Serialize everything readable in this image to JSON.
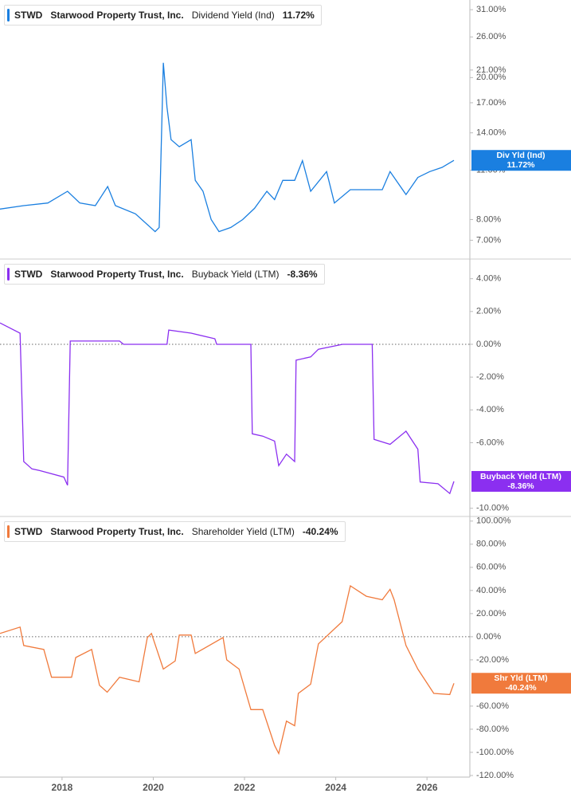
{
  "chart_data": [
    {
      "type": "line",
      "ticker": "STWD",
      "company": "Starwood Property Trust, Inc.",
      "last_label": "11.72%",
      "badge_name": "Div Yld (Ind)",
      "log_scale": true,
      "zero_line": false,
      "x": [
        2016.64,
        2017.16,
        2017.69,
        2018.12,
        2018.39,
        2018.73,
        2019.0,
        2019.17,
        2019.61,
        2020.04,
        2020.13,
        2020.22,
        2020.3,
        2020.39,
        2020.57,
        2020.83,
        2020.92,
        2021.09,
        2021.27,
        2021.44,
        2021.7,
        2021.96,
        2022.22,
        2022.49,
        2022.66,
        2022.84,
        2023.1,
        2023.27,
        2023.45,
        2023.8,
        2023.97,
        2024.32,
        2024.67,
        2025.02,
        2025.19,
        2025.54,
        2025.8,
        2026.06,
        2026.33,
        2026.59
      ],
      "series": [
        {
          "name": "Dividend Yield (Ind)",
          "color": "#1a7fe0",
          "values": [
            8.56,
            8.75,
            8.9,
            9.6,
            8.9,
            8.75,
            9.9,
            8.75,
            8.3,
            7.4,
            7.6,
            22,
            16.5,
            13.4,
            12.8,
            13.4,
            10.3,
            9.6,
            8.0,
            7.4,
            7.6,
            8.0,
            8.6,
            9.6,
            9.1,
            10.3,
            10.3,
            11.7,
            9.6,
            10.9,
            8.9,
            9.7,
            9.7,
            9.7,
            10.9,
            9.4,
            10.5,
            10.9,
            11.2,
            11.72
          ]
        }
      ],
      "xlim": [
        2016.64,
        2026.94
      ],
      "ylim": [
        6.2,
        33
      ],
      "yticks": [
        {
          "value": 7,
          "label": "7.00%"
        },
        {
          "value": 8,
          "label": "8.00%"
        },
        {
          "value": 11,
          "label": "11.00%"
        },
        {
          "value": 14,
          "label": "14.00%"
        },
        {
          "value": 17,
          "label": "17.00%"
        },
        {
          "value": 20,
          "label": "20.00%"
        },
        {
          "value": 21,
          "label": "21.00%"
        },
        {
          "value": 26,
          "label": "26.00%"
        },
        {
          "value": 31,
          "label": "31.00%"
        }
      ]
    },
    {
      "type": "line",
      "ticker": "STWD",
      "company": "Starwood Property Trust, Inc.",
      "last_label": "-8.36%",
      "badge_name": "Buyback Yield (LTM)",
      "log_scale": false,
      "zero_line": true,
      "x": [
        2016.64,
        2017.08,
        2017.16,
        2017.34,
        2017.51,
        2018.04,
        2018.12,
        2018.18,
        2019.26,
        2019.35,
        2020.3,
        2020.34,
        2020.83,
        2021.35,
        2021.39,
        2022.14,
        2022.17,
        2022.4,
        2022.66,
        2022.75,
        2022.92,
        2023.1,
        2023.13,
        2023.45,
        2023.62,
        2024.15,
        2024.8,
        2024.84,
        2025.19,
        2025.54,
        2025.8,
        2025.85,
        2026.24,
        2026.5,
        2026.59
      ],
      "series": [
        {
          "name": "Buyback Yield (LTM)",
          "color": "#8b2ff0",
          "values": [
            1.3,
            0.68,
            -7.15,
            -7.6,
            -7.7,
            -8.1,
            -8.6,
            0.2,
            0.2,
            0,
            0,
            0.87,
            0.68,
            0.34,
            0,
            0,
            -5.46,
            -5.6,
            -5.9,
            -7.4,
            -6.7,
            -7.15,
            -0.97,
            -0.77,
            -0.3,
            0,
            0,
            -5.8,
            -6.1,
            -5.3,
            -6.4,
            -8.4,
            -8.5,
            -9.1,
            -8.36
          ]
        }
      ],
      "xlim": [
        2016.64,
        2026.94
      ],
      "ylim": [
        -10.5,
        5.2
      ],
      "yticks": [
        {
          "value": -10,
          "label": "-10.00%"
        },
        {
          "value": -6,
          "label": "-6.00%"
        },
        {
          "value": -4,
          "label": "-4.00%"
        },
        {
          "value": -2,
          "label": "-2.00%"
        },
        {
          "value": 0,
          "label": "0.00%"
        },
        {
          "value": 2,
          "label": "2.00%"
        },
        {
          "value": 4,
          "label": "4.00%"
        }
      ]
    },
    {
      "type": "line",
      "ticker": "STWD",
      "company": "Starwood Property Trust, Inc.",
      "last_label": "-40.24%",
      "badge_name": "Shr Yld (LTM)",
      "log_scale": false,
      "zero_line": true,
      "x": [
        2016.64,
        2017.08,
        2017.16,
        2017.6,
        2017.77,
        2018.21,
        2018.3,
        2018.65,
        2018.82,
        2018.99,
        2019.26,
        2019.69,
        2019.87,
        2019.96,
        2020.22,
        2020.48,
        2020.57,
        2020.83,
        2020.92,
        2021.53,
        2021.61,
        2021.88,
        2022.14,
        2022.4,
        2022.66,
        2022.75,
        2022.92,
        2023.1,
        2023.18,
        2023.45,
        2023.62,
        2024.14,
        2024.32,
        2024.67,
        2025.02,
        2025.19,
        2025.28,
        2025.54,
        2025.8,
        2026.15,
        2026.5,
        2026.59
      ],
      "series": [
        {
          "name": "Shareholder Yield (LTM)",
          "color": "#f07a3c",
          "values": [
            2.8,
            8.3,
            -7.6,
            -11,
            -35,
            -35,
            -18,
            -11,
            -42,
            -48,
            -35,
            -39,
            -0.7,
            2.8,
            -28,
            -21,
            1.4,
            1.4,
            -14.5,
            -0.7,
            -20,
            -28,
            -63,
            -63,
            -94,
            -101,
            -73,
            -77,
            -49,
            -41,
            -6.2,
            13,
            44,
            35,
            32,
            41,
            32,
            -7.6,
            -28,
            -49,
            -50,
            -40.24
          ]
        }
      ],
      "xlim": [
        2016.64,
        2026.94
      ],
      "ylim": [
        -121.4,
        104
      ],
      "xticks": [
        2018,
        2020,
        2022,
        2024,
        2026
      ],
      "yticks": [
        {
          "value": -120,
          "label": "-120.00%"
        },
        {
          "value": -100,
          "label": "-100.00%"
        },
        {
          "value": -80,
          "label": "-80.00%"
        },
        {
          "value": -60,
          "label": "-60.00%"
        },
        {
          "value": -20,
          "label": "-20.00%"
        },
        {
          "value": 0,
          "label": "0.00%"
        },
        {
          "value": 20,
          "label": "20.00%"
        },
        {
          "value": 40,
          "label": "40.00%"
        },
        {
          "value": 60,
          "label": "60.00%"
        },
        {
          "value": 80,
          "label": "80.00%"
        },
        {
          "value": 100,
          "label": "100.00%"
        }
      ]
    }
  ]
}
